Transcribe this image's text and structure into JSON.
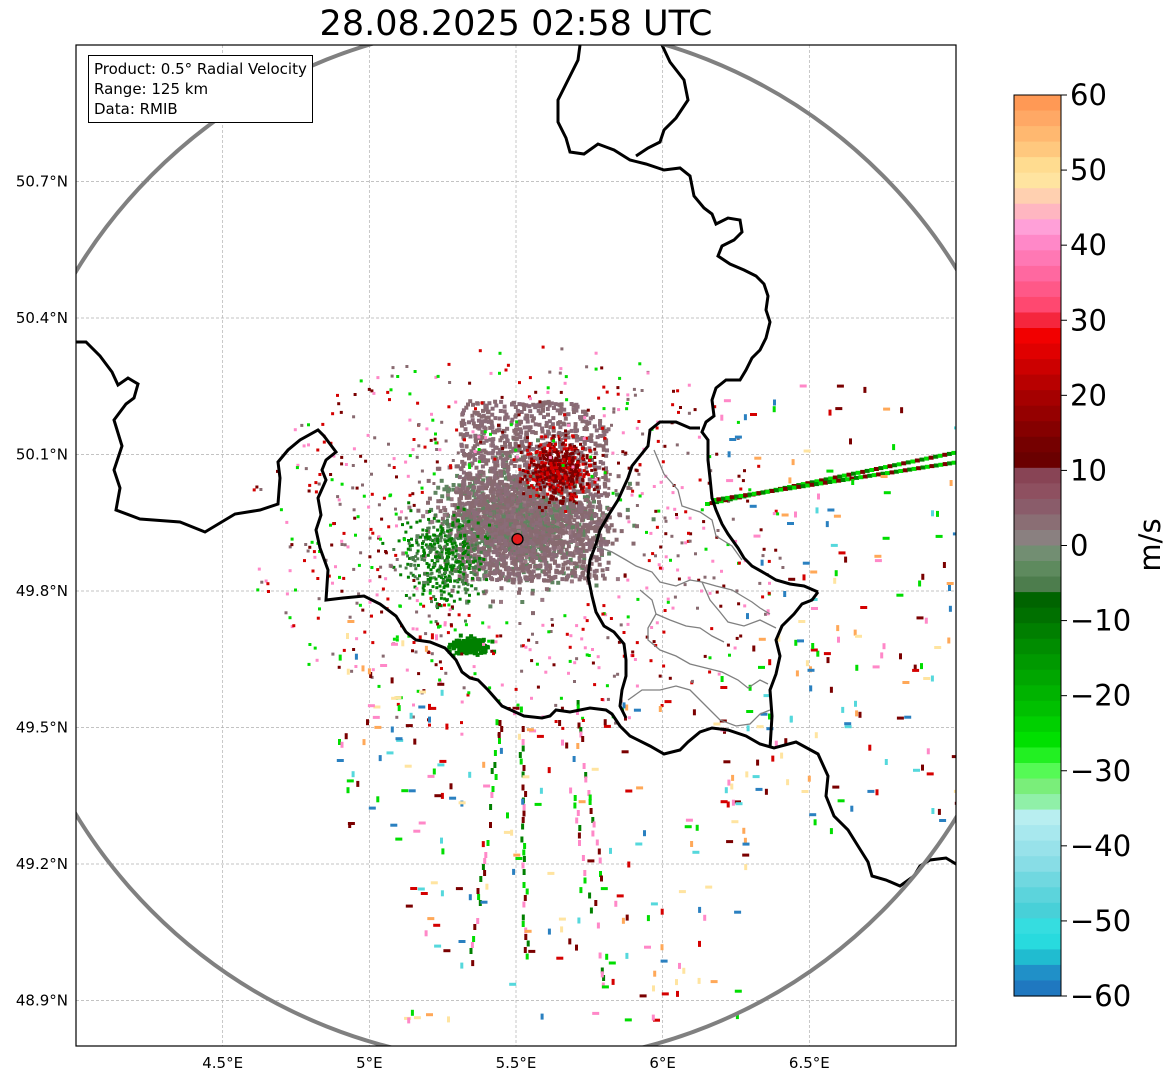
{
  "title": "28.08.2025 02:58 UTC",
  "info": {
    "product": "Product: 0.5° Radial Velocity",
    "range": "Range: 125 km",
    "source": "Data: RMIB"
  },
  "map": {
    "extent": {
      "lon": [
        4.0,
        7.0
      ],
      "lat": [
        48.8,
        51.0
      ]
    },
    "radar_site": {
      "lon": 5.505,
      "lat": 49.914
    },
    "range_km": 125,
    "lon_ticks": [
      {
        "value": 4.5,
        "label": "4.5°E"
      },
      {
        "value": 5.0,
        "label": "5°E"
      },
      {
        "value": 5.5,
        "label": "5.5°E"
      },
      {
        "value": 6.0,
        "label": "6°E"
      },
      {
        "value": 6.5,
        "label": "6.5°E"
      }
    ],
    "lat_ticks": [
      {
        "value": 50.7,
        "label": "50.7°N"
      },
      {
        "value": 50.4,
        "label": "50.4°N"
      },
      {
        "value": 50.1,
        "label": "50.1°N"
      },
      {
        "value": 49.8,
        "label": "49.8°N"
      },
      {
        "value": 49.5,
        "label": "49.5°N"
      },
      {
        "value": 49.2,
        "label": "49.2°N"
      },
      {
        "value": 48.9,
        "label": "48.9°N"
      }
    ],
    "grid": true,
    "range_ring_color": "#808080",
    "border_color": "#000000",
    "region_border_color": "#808080",
    "site_marker_color": "#e41a1c"
  },
  "colorbar": {
    "label": "m/s",
    "min": -60,
    "max": 60,
    "ticks": [
      {
        "value": 60,
        "label": "60"
      },
      {
        "value": 50,
        "label": "50"
      },
      {
        "value": 40,
        "label": "40"
      },
      {
        "value": 30,
        "label": "30"
      },
      {
        "value": 20,
        "label": "20"
      },
      {
        "value": 10,
        "label": "10"
      },
      {
        "value": 0,
        "label": "0"
      },
      {
        "value": -10,
        "label": "−10"
      },
      {
        "value": -20,
        "label": "−20"
      },
      {
        "value": -30,
        "label": "−30"
      },
      {
        "value": -40,
        "label": "−40"
      },
      {
        "value": -50,
        "label": "−50"
      },
      {
        "value": -60,
        "label": "−60"
      }
    ],
    "colors_top_to_bottom": [
      "#ff9955",
      "#ffa865",
      "#ffb870",
      "#ffc87e",
      "#ffdc90",
      "#ffe4a0",
      "#ffd0b0",
      "#ffb6c1",
      "#ffa0d8",
      "#ff88c8",
      "#ff78b4",
      "#ff68a0",
      "#ff5888",
      "#ff4870",
      "#f5263d",
      "#f20000",
      "#e00000",
      "#cc0000",
      "#b80000",
      "#a50000",
      "#950000",
      "#850000",
      "#750000",
      "#6a0000",
      "#884455",
      "#8e5060",
      "#8a5c6a",
      "#8a6e74",
      "#8a8080",
      "#728e72",
      "#5e8a5e",
      "#4d7d4d",
      "#006400",
      "#007000",
      "#007f00",
      "#008c00",
      "#009900",
      "#00a600",
      "#00b300",
      "#00c000",
      "#00d000",
      "#00e000",
      "#22f022",
      "#55fa55",
      "#7aee7a",
      "#90f0a8",
      "#b8eef0",
      "#a8e8ee",
      "#98e2ea",
      "#88dde6",
      "#70d8e0",
      "#5cd4dc",
      "#48d0d8",
      "#35dde0",
      "#28dade",
      "#20bcd0",
      "#2090c8",
      "#1f78c0"
    ]
  },
  "echo_colors": {
    "positive_dark": "#7a0000",
    "positive": "#d40000",
    "neutral": "#886a70",
    "neutral_green": "#5f8560",
    "negative": "#008000",
    "negative_bright": "#00dd00",
    "far_pink": "#ff88c8",
    "far_orange": "#ffa858",
    "far_cyan": "#55d8dc",
    "far_blue": "#2a80c0"
  }
}
